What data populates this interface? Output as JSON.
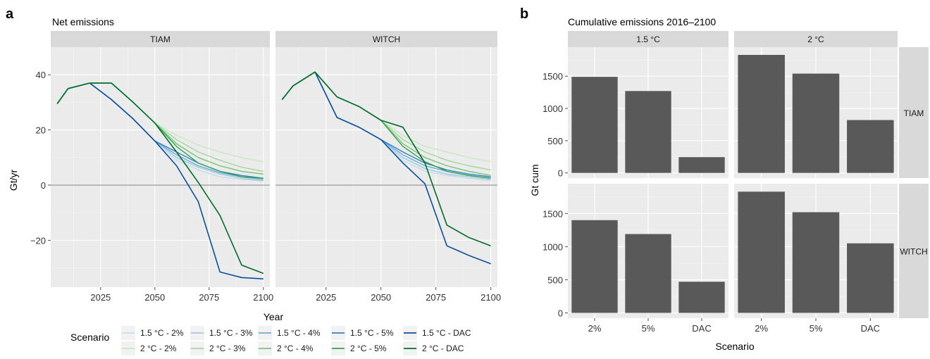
{
  "panel_a": {
    "letter": "a",
    "title": "Net emissions",
    "facets": [
      "TIAM",
      "WITCH"
    ],
    "xlabel": "Year",
    "ylabel": "Gt/yr",
    "x_ticks": [
      2025,
      2050,
      2075,
      2100
    ],
    "y_ticks": [
      -20,
      0,
      20,
      40
    ],
    "y_tick_labels": [
      "−20",
      "0",
      "20",
      "40"
    ]
  },
  "panel_b": {
    "letter": "b",
    "title": "Cumulative emissions 2016–2100",
    "col_facets": [
      "1.5 °C",
      "2 °C"
    ],
    "row_facets": [
      "TIAM",
      "WITCH"
    ],
    "xlabel": "Scenario",
    "ylabel": "Gt cum",
    "y_ticks": [
      0,
      500,
      1000,
      1500
    ]
  },
  "legend": {
    "title": "Scenario",
    "items": [
      {
        "label": "1.5 °C - 2%",
        "color": "#c6dbef"
      },
      {
        "label": "1.5 °C - 3%",
        "color": "#9ecae1"
      },
      {
        "label": "1.5 °C - 4%",
        "color": "#6baed6"
      },
      {
        "label": "1.5 °C - 5%",
        "color": "#3182bd"
      },
      {
        "label": "1.5 °C - DAC",
        "color": "#08519c"
      },
      {
        "label": "2 °C - 2%",
        "color": "#c7e9c0"
      },
      {
        "label": "2 °C - 3%",
        "color": "#a1d99b"
      },
      {
        "label": "2 °C - 4%",
        "color": "#74c476"
      },
      {
        "label": "2 °C - 5%",
        "color": "#31a354"
      },
      {
        "label": "2 °C - DAC",
        "color": "#006d2c"
      }
    ]
  },
  "chart_data": [
    {
      "type": "line",
      "title": "Net emissions",
      "xlabel": "Year",
      "ylabel": "Gt/yr",
      "xlim": [
        2002,
        2103
      ],
      "ylim": [
        -37,
        50
      ],
      "facets": [
        {
          "name": "TIAM",
          "series": [
            {
              "name": "1.5 °C - 2%",
              "x": [
                2005,
                2010,
                2020,
                2030,
                2040,
                2050,
                2060,
                2070,
                2080,
                2090,
                2100
              ],
              "y": [
                29.5,
                35,
                37,
                31,
                24,
                16,
                9,
                5.5,
                3,
                2,
                1.5
              ]
            },
            {
              "name": "1.5 °C - 3%",
              "x": [
                2005,
                2010,
                2020,
                2030,
                2040,
                2050,
                2060,
                2070,
                2080,
                2090,
                2100
              ],
              "y": [
                29.5,
                35,
                37,
                31,
                24,
                16,
                10,
                6.5,
                4,
                2.5,
                1.5
              ]
            },
            {
              "name": "1.5 °C - 4%",
              "x": [
                2005,
                2010,
                2020,
                2030,
                2040,
                2050,
                2060,
                2070,
                2080,
                2090,
                2100
              ],
              "y": [
                29.5,
                35,
                37,
                31,
                24,
                16,
                11,
                7,
                4.5,
                3,
                2
              ]
            },
            {
              "name": "1.5 °C - 5%",
              "x": [
                2005,
                2010,
                2020,
                2030,
                2040,
                2050,
                2060,
                2070,
                2080,
                2090,
                2100
              ],
              "y": [
                29.5,
                35,
                37,
                31,
                24,
                16,
                12,
                8,
                5,
                3.5,
                2.5
              ]
            },
            {
              "name": "1.5 °C - DAC",
              "x": [
                2005,
                2010,
                2020,
                2030,
                2040,
                2050,
                2060,
                2070,
                2080,
                2090,
                2100
              ],
              "y": [
                29.5,
                35,
                37,
                31,
                24,
                16,
                7,
                -6,
                -31.5,
                -33.5,
                -34
              ]
            },
            {
              "name": "2 °C - 2%",
              "x": [
                2005,
                2010,
                2020,
                2030,
                2040,
                2050,
                2060,
                2070,
                2080,
                2090,
                2100
              ],
              "y": [
                29.5,
                35,
                37,
                37,
                30,
                22.5,
                18,
                14.5,
                12,
                10,
                8.5
              ]
            },
            {
              "name": "2 °C - 3%",
              "x": [
                2005,
                2010,
                2020,
                2030,
                2040,
                2050,
                2060,
                2070,
                2080,
                2090,
                2100
              ],
              "y": [
                29.5,
                35,
                37,
                37,
                30,
                22.5,
                16.5,
                12,
                9,
                6.5,
                5
              ]
            },
            {
              "name": "2 °C - 4%",
              "x": [
                2005,
                2010,
                2020,
                2030,
                2040,
                2050,
                2060,
                2070,
                2080,
                2090,
                2100
              ],
              "y": [
                29.5,
                35,
                37,
                37,
                30,
                22.5,
                15,
                10,
                7,
                5,
                4
              ]
            },
            {
              "name": "2 °C - 5%",
              "x": [
                2005,
                2010,
                2020,
                2030,
                2040,
                2050,
                2060,
                2070,
                2080,
                2090,
                2100
              ],
              "y": [
                29.5,
                35,
                37,
                37,
                30,
                22.5,
                14,
                8,
                5,
                3,
                2.5
              ]
            },
            {
              "name": "2 °C - DAC",
              "x": [
                2005,
                2010,
                2020,
                2030,
                2040,
                2050,
                2060,
                2070,
                2080,
                2090,
                2100
              ],
              "y": [
                29.5,
                35,
                37,
                37,
                30,
                22.5,
                12,
                1,
                -11,
                -29,
                -32
              ]
            }
          ]
        },
        {
          "name": "WITCH",
          "series": [
            {
              "name": "1.5 °C - 2%",
              "x": [
                2005,
                2010,
                2020,
                2030,
                2040,
                2050,
                2060,
                2070,
                2080,
                2090,
                2100
              ],
              "y": [
                31,
                36,
                41,
                24.5,
                21,
                16.5,
                9,
                5,
                3.5,
                2.5,
                1.5
              ]
            },
            {
              "name": "1.5 °C - 3%",
              "x": [
                2005,
                2010,
                2020,
                2030,
                2040,
                2050,
                2060,
                2070,
                2080,
                2090,
                2100
              ],
              "y": [
                31,
                36,
                41,
                24.5,
                21,
                16.5,
                10,
                6,
                4,
                3,
                2
              ]
            },
            {
              "name": "1.5 °C - 4%",
              "x": [
                2005,
                2010,
                2020,
                2030,
                2040,
                2050,
                2060,
                2070,
                2080,
                2090,
                2100
              ],
              "y": [
                31,
                36,
                41,
                24.5,
                21,
                16.5,
                11,
                7,
                5,
                3.5,
                2.5
              ]
            },
            {
              "name": "1.5 °C - 5%",
              "x": [
                2005,
                2010,
                2020,
                2030,
                2040,
                2050,
                2060,
                2070,
                2080,
                2090,
                2100
              ],
              "y": [
                31,
                36,
                41,
                24.5,
                21,
                16.5,
                12,
                8,
                5.5,
                4,
                3
              ]
            },
            {
              "name": "1.5 °C - DAC",
              "x": [
                2005,
                2010,
                2020,
                2030,
                2040,
                2050,
                2060,
                2070,
                2080,
                2090,
                2100
              ],
              "y": [
                31,
                36,
                41,
                24.5,
                21,
                16.5,
                8,
                0.5,
                -22,
                -25.5,
                -28.5
              ]
            },
            {
              "name": "2 °C - 2%",
              "x": [
                2005,
                2010,
                2020,
                2030,
                2040,
                2050,
                2060,
                2070,
                2080,
                2090,
                2100
              ],
              "y": [
                31,
                36,
                41,
                32,
                28.5,
                23.5,
                18,
                14,
                12,
                10,
                8.5
              ]
            },
            {
              "name": "2 °C - 3%",
              "x": [
                2005,
                2010,
                2020,
                2030,
                2040,
                2050,
                2060,
                2070,
                2080,
                2090,
                2100
              ],
              "y": [
                31,
                36,
                41,
                32,
                28.5,
                23.5,
                16.5,
                12,
                9,
                7,
                5.5
              ]
            },
            {
              "name": "2 °C - 4%",
              "x": [
                2005,
                2010,
                2020,
                2030,
                2040,
                2050,
                2060,
                2070,
                2080,
                2090,
                2100
              ],
              "y": [
                31,
                36,
                41,
                32,
                28.5,
                23.5,
                15,
                10,
                7,
                5,
                3.5
              ]
            },
            {
              "name": "2 °C - 5%",
              "x": [
                2005,
                2010,
                2020,
                2030,
                2040,
                2050,
                2060,
                2070,
                2080,
                2090,
                2100
              ],
              "y": [
                31,
                36,
                41,
                32,
                28.5,
                23.5,
                14,
                8.5,
                5,
                3.5,
                2.5
              ]
            },
            {
              "name": "2 °C - DAC",
              "x": [
                2005,
                2010,
                2020,
                2030,
                2040,
                2050,
                2060,
                2070,
                2080,
                2090,
                2100
              ],
              "y": [
                31,
                36,
                41,
                32,
                28.5,
                23.5,
                21,
                8,
                -14.5,
                -19,
                -22
              ]
            }
          ]
        }
      ],
      "hline": 0,
      "grid": true
    },
    {
      "type": "bar",
      "title": "Cumulative emissions 2016–2100",
      "xlabel": "Scenario",
      "ylabel": "Gt cum",
      "categories": [
        "2%",
        "5%",
        "DAC"
      ],
      "ylim": [
        -80,
        1950
      ],
      "grid": true,
      "facets": [
        {
          "row": "TIAM",
          "col": "1.5 °C",
          "values": [
            1490,
            1270,
            245
          ]
        },
        {
          "row": "TIAM",
          "col": "2 °C",
          "values": [
            1830,
            1540,
            820
          ]
        },
        {
          "row": "WITCH",
          "col": "1.5 °C",
          "values": [
            1400,
            1190,
            470
          ]
        },
        {
          "row": "WITCH",
          "col": "2 °C",
          "values": [
            1830,
            1520,
            1050
          ]
        }
      ],
      "bar_color": "#595959"
    }
  ]
}
